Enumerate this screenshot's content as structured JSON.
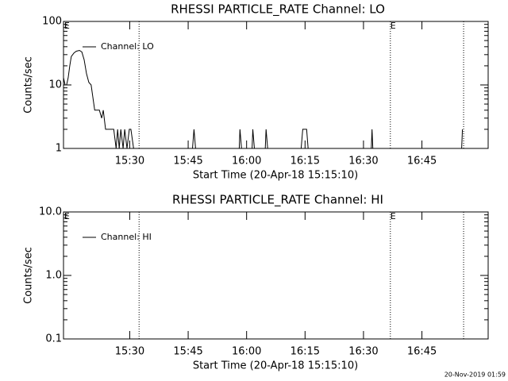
{
  "chart_data": [
    {
      "type": "line",
      "title": "RHESSI PARTICLE_RATE Channel: LO",
      "xlabel": "Start Time (20-Apr-18 15:15:10)",
      "ylabel": "Counts/sec",
      "x": [
        913.0,
        913.4,
        913.8,
        914.2,
        914.6,
        915.0,
        915.7,
        916.3,
        917.1,
        917.7,
        918.3,
        918.9,
        919.5,
        920.1,
        920.6,
        921.0,
        921.6,
        922.2,
        922.8,
        923.2,
        923.8,
        924.4,
        925.0,
        925.9,
        926.5,
        926.9,
        927.3,
        927.7,
        928.3,
        928.7,
        929.3,
        929.9,
        930.3,
        931.0,
        946.1,
        946.5,
        946.9,
        958.1,
        958.3,
        958.7,
        961.4,
        961.6,
        962.0,
        964.8,
        965.0,
        965.4,
        974.0,
        974.4,
        975.4,
        975.8,
        992.0,
        992.2,
        992.4,
        1015.2,
        1015.4
      ],
      "series": [
        {
          "name": "Channel: LO",
          "color": "#000000",
          "values": [
            13,
            10,
            10,
            13,
            20,
            28,
            32,
            34,
            35,
            33,
            25,
            15,
            11,
            10,
            6,
            4,
            4,
            4,
            3,
            4,
            2,
            2,
            2,
            2,
            1,
            2,
            1,
            2,
            1,
            2,
            1,
            2,
            2,
            1,
            1,
            2,
            1,
            1,
            2,
            1,
            1,
            2,
            1,
            1,
            2,
            1,
            1,
            2,
            2,
            1,
            1,
            2,
            1,
            1,
            2
          ]
        }
      ],
      "xlim": [
        913,
        1022
      ],
      "ylim": [
        1,
        100
      ],
      "log_y": true,
      "legend": "upper left",
      "xticks": [
        {
          "value": 930,
          "label": "15:30"
        },
        {
          "value": 945,
          "label": "15:45"
        },
        {
          "value": 960,
          "label": "16:00"
        },
        {
          "value": 975,
          "label": "16:15"
        },
        {
          "value": 990,
          "label": "16:30"
        },
        {
          "value": 1005,
          "label": "16:45"
        }
      ],
      "yticks": [
        1,
        10,
        100
      ],
      "vlines": [
        932.4,
        996.9,
        1015.7
      ],
      "annotations": [
        {
          "text": "E",
          "x": 914.0
        },
        {
          "text": "E",
          "x": 997.7
        }
      ]
    },
    {
      "type": "line",
      "title": "RHESSI PARTICLE_RATE Channel: HI",
      "xlabel": "Start Time (20-Apr-18 15:15:10)",
      "ylabel": "Counts/sec",
      "x": [],
      "series": [
        {
          "name": "Channel: HI",
          "color": "#000000",
          "values": []
        }
      ],
      "xlim": [
        913,
        1022
      ],
      "ylim": [
        0.1,
        10
      ],
      "log_y": true,
      "legend": "upper left",
      "xticks": [
        {
          "value": 930,
          "label": "15:30"
        },
        {
          "value": 945,
          "label": "15:45"
        },
        {
          "value": 960,
          "label": "16:00"
        },
        {
          "value": 975,
          "label": "16:15"
        },
        {
          "value": 990,
          "label": "16:30"
        },
        {
          "value": 1005,
          "label": "16:45"
        }
      ],
      "yticks": [
        0.1,
        {
          "value": 1,
          "label": "1.0"
        },
        {
          "value": 10,
          "label": "10.0"
        }
      ],
      "vlines": [
        932.4,
        996.9,
        1015.7
      ],
      "annotations": [
        {
          "text": "E",
          "x": 914.0
        },
        {
          "text": "E",
          "x": 997.7
        }
      ]
    }
  ],
  "footer": "20-Nov-2019 01:59"
}
